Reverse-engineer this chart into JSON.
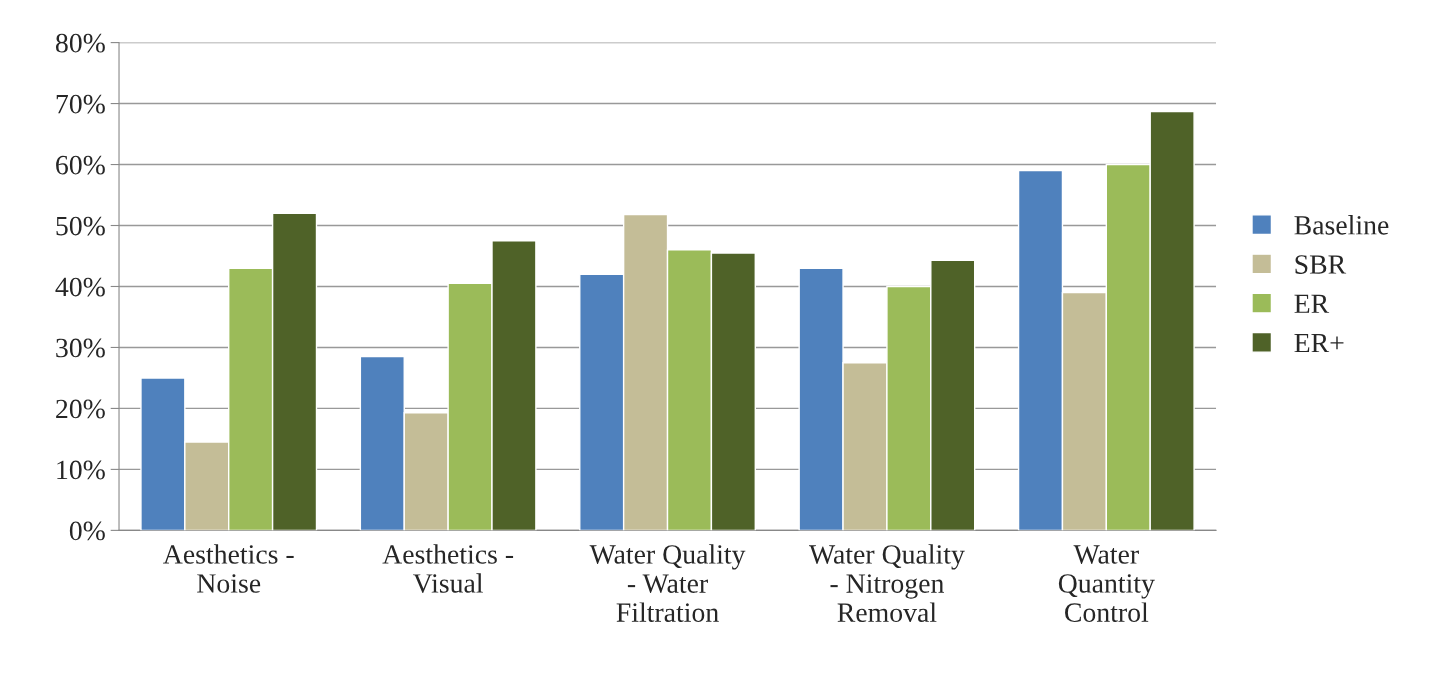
{
  "chart_data": {
    "type": "bar",
    "categories": [
      "Aesthetics -\nNoise",
      "Aesthetics -\nVisual",
      "Water Quality\n- Water\nFiltration",
      "Water Quality\n- Nitrogen\nRemoval",
      "Water\nQuantity\nControl"
    ],
    "series": [
      {
        "name": "Baseline",
        "color": "#4f81bd",
        "values": [
          25,
          28.5,
          42,
          43,
          59
        ]
      },
      {
        "name": "SBR",
        "color": "#c4bd97",
        "values": [
          14.5,
          19.3,
          51.8,
          27.5,
          39
        ]
      },
      {
        "name": "ER",
        "color": "#9bbb59",
        "values": [
          43,
          40.5,
          46,
          40,
          60
        ]
      },
      {
        "name": "ER+",
        "color": "#4f6228",
        "values": [
          52,
          47.5,
          45.5,
          44.3,
          68.7
        ]
      }
    ],
    "ylim": [
      0,
      80
    ],
    "yticks": [
      {
        "value": 0,
        "label": "0%"
      },
      {
        "value": 10,
        "label": "10%"
      },
      {
        "value": 20,
        "label": "20%"
      },
      {
        "value": 30,
        "label": "30%"
      },
      {
        "value": 40,
        "label": "40%"
      },
      {
        "value": 50,
        "label": "50%"
      },
      {
        "value": 60,
        "label": "60%"
      },
      {
        "value": 70,
        "label": "70%"
      },
      {
        "value": 80,
        "label": "80%"
      }
    ],
    "grid": "y",
    "legend": "right"
  }
}
